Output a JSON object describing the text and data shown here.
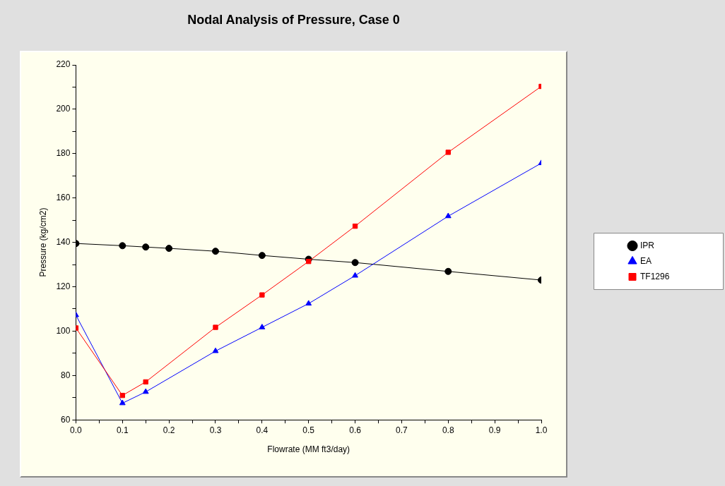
{
  "chart_data": {
    "type": "line",
    "title": "Nodal Analysis of Pressure, Case 0",
    "xlabel": "Flowrate (MM ft3/day)",
    "ylabel": "Pressure (kg/cm2)",
    "xlim": [
      0,
      1
    ],
    "ylim": [
      60,
      220
    ],
    "xticks": [
      {
        "value": 0,
        "label": "0.0"
      },
      {
        "value": 0.05,
        "label": null
      },
      {
        "value": 0.1,
        "label": "0.1"
      },
      {
        "value": 0.15,
        "label": null
      },
      {
        "value": 0.2,
        "label": "0.2"
      },
      {
        "value": 0.25,
        "label": null
      },
      {
        "value": 0.3,
        "label": "0.3"
      },
      {
        "value": 0.35,
        "label": null
      },
      {
        "value": 0.4,
        "label": "0.4"
      },
      {
        "value": 0.45,
        "label": null
      },
      {
        "value": 0.5,
        "label": "0.5"
      },
      {
        "value": 0.55,
        "label": null
      },
      {
        "value": 0.6,
        "label": "0.6"
      },
      {
        "value": 0.65,
        "label": null
      },
      {
        "value": 0.7,
        "label": "0.7"
      },
      {
        "value": 0.75,
        "label": null
      },
      {
        "value": 0.8,
        "label": "0.8"
      },
      {
        "value": 0.85,
        "label": null
      },
      {
        "value": 0.9,
        "label": "0.9"
      },
      {
        "value": 0.95,
        "label": null
      },
      {
        "value": 1,
        "label": "1.0"
      }
    ],
    "yticks": [
      60,
      {
        "value": 70,
        "label": null
      },
      80,
      {
        "value": 90,
        "label": null
      },
      100,
      {
        "value": 110,
        "label": null
      },
      120,
      {
        "value": 130,
        "label": null
      },
      140,
      {
        "value": 150,
        "label": null
      },
      160,
      {
        "value": 170,
        "label": null
      },
      180,
      {
        "value": 190,
        "label": null
      },
      200,
      {
        "value": 210,
        "label": null
      },
      220
    ],
    "grid": false,
    "legend": "right",
    "line_style": "solid",
    "series": [
      {
        "name": "IPR",
        "color": "#000000",
        "marker": "circle",
        "x": [
          0,
          0.1,
          0.15,
          0.2,
          0.3,
          0.4,
          0.5,
          0.6,
          0.8,
          1
        ],
        "values": [
          139.5,
          138.5,
          137.9,
          137.3,
          136,
          134.1,
          132.4,
          130.9,
          126.9,
          123
        ]
      },
      {
        "name": "EA",
        "color": "#0000ff",
        "marker": "triangle",
        "x": [
          0,
          0.1,
          0.15,
          0.3,
          0.4,
          0.5,
          0.6,
          0.8,
          1
        ],
        "values": [
          107.2,
          67.5,
          72.6,
          91,
          101.7,
          112.4,
          125,
          151.8,
          175.7
        ]
      },
      {
        "name": "TF1296",
        "color": "#ff0000",
        "marker": "square",
        "x": [
          0,
          0.1,
          0.15,
          0.3,
          0.4,
          0.5,
          0.6,
          0.8,
          1
        ],
        "values": [
          101.4,
          71,
          77.1,
          101.7,
          116.3,
          131.4,
          147.3,
          180.6,
          210.3
        ]
      }
    ]
  }
}
